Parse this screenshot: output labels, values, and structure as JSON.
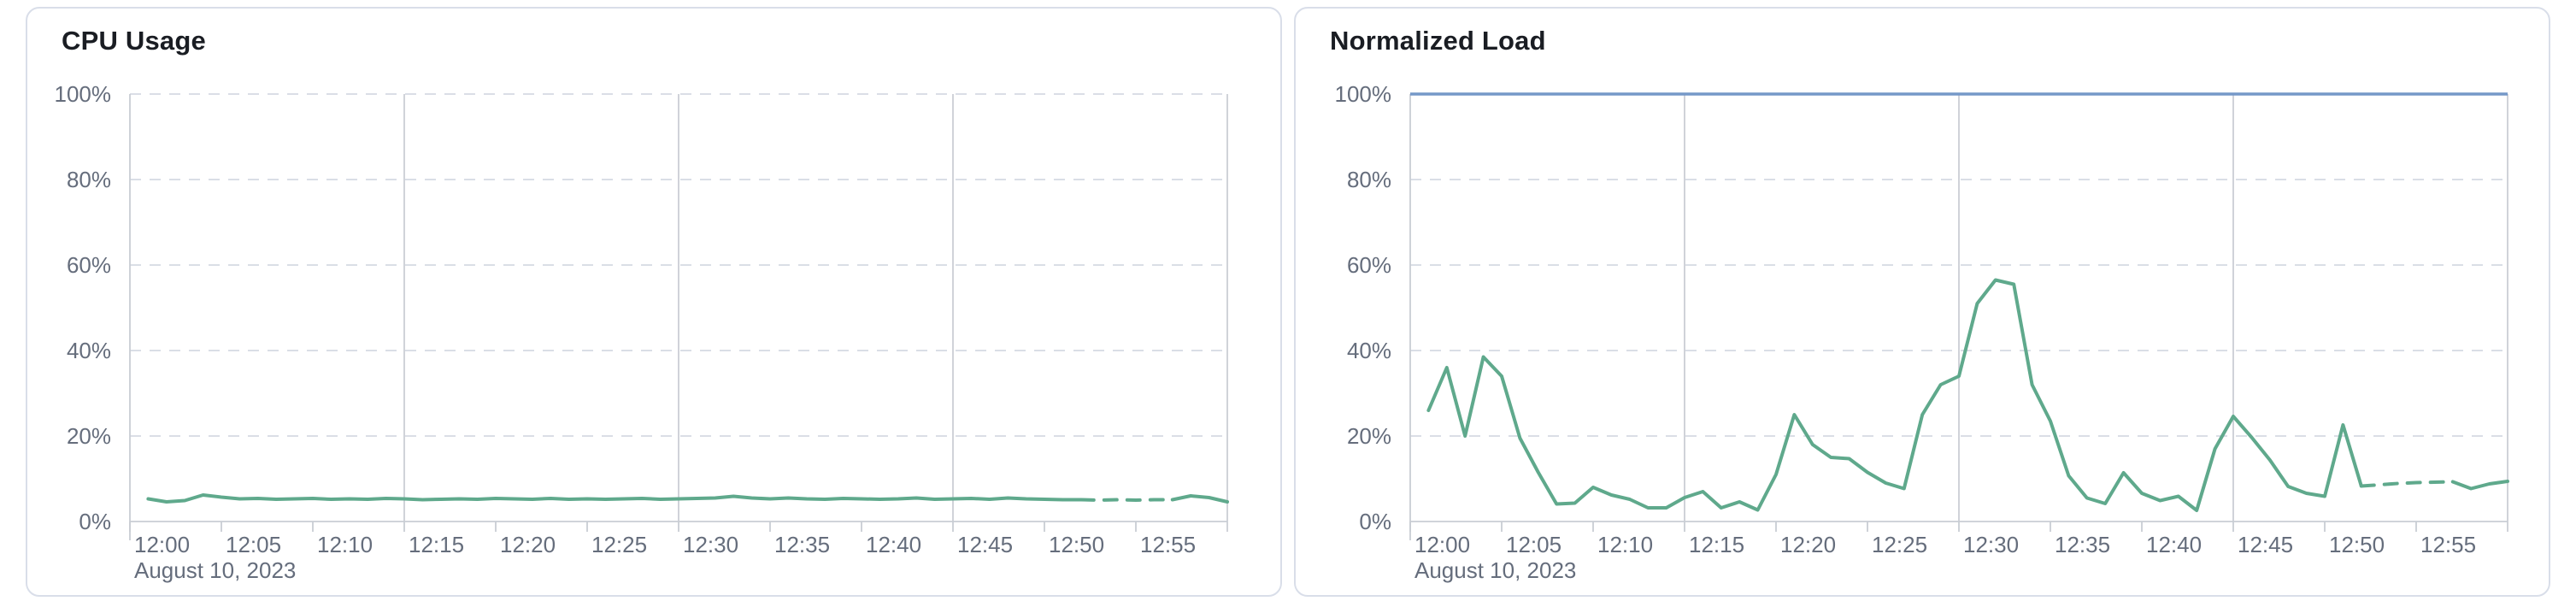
{
  "colors": {
    "background": "#ffffff",
    "card_border": "#d9dee9",
    "title_text": "#1a1d23",
    "axis_label_text": "#656d7c",
    "gridline_dashed": "#d5dae3",
    "gridline_vertical": "#cbced5",
    "axis_line": "#c9cdd4",
    "series_green": "#5fa98c",
    "limit_blue": "#7598c8"
  },
  "chart_data": [
    {
      "type": "line",
      "title": "CPU Usage",
      "ylim": [
        0,
        100
      ],
      "grid": true,
      "legend": "none",
      "y_axis": {
        "ticks": [
          {
            "value": 0,
            "label": "0%"
          },
          {
            "value": 20,
            "label": "20%"
          },
          {
            "value": 40,
            "label": "40%"
          },
          {
            "value": 60,
            "label": "60%"
          },
          {
            "value": 80,
            "label": "80%"
          },
          {
            "value": 100,
            "label": "100%"
          }
        ]
      },
      "x_axis": {
        "min_minute": 0,
        "max_minute": 60,
        "date_label": "August 10, 2023",
        "gridline_minutes": [
          15,
          30,
          45
        ],
        "ticks": [
          {
            "minute": 0,
            "label": "12:00"
          },
          {
            "minute": 5,
            "label": "12:05"
          },
          {
            "minute": 10,
            "label": "12:10"
          },
          {
            "minute": 15,
            "label": "12:15"
          },
          {
            "minute": 20,
            "label": "12:20"
          },
          {
            "minute": 25,
            "label": "12:25"
          },
          {
            "minute": 30,
            "label": "12:30"
          },
          {
            "minute": 35,
            "label": "12:35"
          },
          {
            "minute": 40,
            "label": "12:40"
          },
          {
            "minute": 45,
            "label": "12:45"
          },
          {
            "minute": 50,
            "label": "12:50"
          },
          {
            "minute": 55,
            "label": "12:55"
          }
        ]
      },
      "series": [
        {
          "color": "#5fa98c",
          "start_minute": 1,
          "interval_minutes": 1,
          "dash_start_minute": 52,
          "dash_end_minute": 57,
          "values": [
            5.3,
            4.6,
            4.9,
            6.2,
            5.7,
            5.3,
            5.4,
            5.2,
            5.3,
            5.4,
            5.2,
            5.3,
            5.2,
            5.4,
            5.3,
            5.1,
            5.2,
            5.3,
            5.2,
            5.4,
            5.3,
            5.2,
            5.4,
            5.2,
            5.3,
            5.2,
            5.3,
            5.4,
            5.2,
            5.3,
            5.4,
            5.5,
            5.9,
            5.5,
            5.3,
            5.5,
            5.3,
            5.2,
            5.4,
            5.3,
            5.2,
            5.3,
            5.5,
            5.2,
            5.3,
            5.4,
            5.2,
            5.5,
            5.3,
            5.2,
            5.1,
            5.1,
            5.0,
            5.1,
            5.0,
            5.1,
            5.1,
            6.0,
            5.6,
            4.6
          ]
        }
      ],
      "limit_line": null
    },
    {
      "type": "line",
      "title": "Normalized Load",
      "ylim": [
        0,
        100
      ],
      "grid": true,
      "legend": "none",
      "y_axis": {
        "ticks": [
          {
            "value": 0,
            "label": "0%"
          },
          {
            "value": 20,
            "label": "20%"
          },
          {
            "value": 40,
            "label": "40%"
          },
          {
            "value": 60,
            "label": "60%"
          },
          {
            "value": 80,
            "label": "80%"
          },
          {
            "value": 100,
            "label": "100%"
          }
        ]
      },
      "x_axis": {
        "min_minute": 0,
        "max_minute": 60,
        "date_label": "August 10, 2023",
        "gridline_minutes": [
          15,
          30,
          45
        ],
        "ticks": [
          {
            "minute": 0,
            "label": "12:00"
          },
          {
            "minute": 5,
            "label": "12:05"
          },
          {
            "minute": 10,
            "label": "12:10"
          },
          {
            "minute": 15,
            "label": "12:15"
          },
          {
            "minute": 20,
            "label": "12:20"
          },
          {
            "minute": 25,
            "label": "12:25"
          },
          {
            "minute": 30,
            "label": "12:30"
          },
          {
            "minute": 35,
            "label": "12:35"
          },
          {
            "minute": 40,
            "label": "12:40"
          },
          {
            "minute": 45,
            "label": "12:45"
          },
          {
            "minute": 50,
            "label": "12:50"
          },
          {
            "minute": 55,
            "label": "12:55"
          }
        ]
      },
      "series": [
        {
          "color": "#5fa98c",
          "start_minute": 1,
          "interval_minutes": 1,
          "dash_start_minute": 52,
          "dash_end_minute": 57,
          "values": [
            26,
            36,
            20,
            38.5,
            34,
            19.5,
            11.5,
            4.1,
            4.3,
            8,
            6.2,
            5.2,
            3.2,
            3.2,
            5.6,
            7,
            3.2,
            4.6,
            2.7,
            11,
            25,
            18,
            15,
            14.7,
            11.5,
            9,
            7.7,
            25,
            32,
            34,
            51,
            56.5,
            55.5,
            32,
            23.5,
            10.7,
            5.5,
            4.2,
            11.4,
            6.6,
            4.9,
            5.9,
            2.6,
            17,
            24.6,
            19.7,
            14.4,
            8.2,
            6.6,
            5.9,
            22.6,
            8.3,
            8.6,
            8.9,
            9.1,
            9.2,
            9.3,
            7.7,
            8.8,
            9.4
          ]
        }
      ],
      "limit_line": {
        "value": 100,
        "color": "#7598c8"
      }
    }
  ]
}
